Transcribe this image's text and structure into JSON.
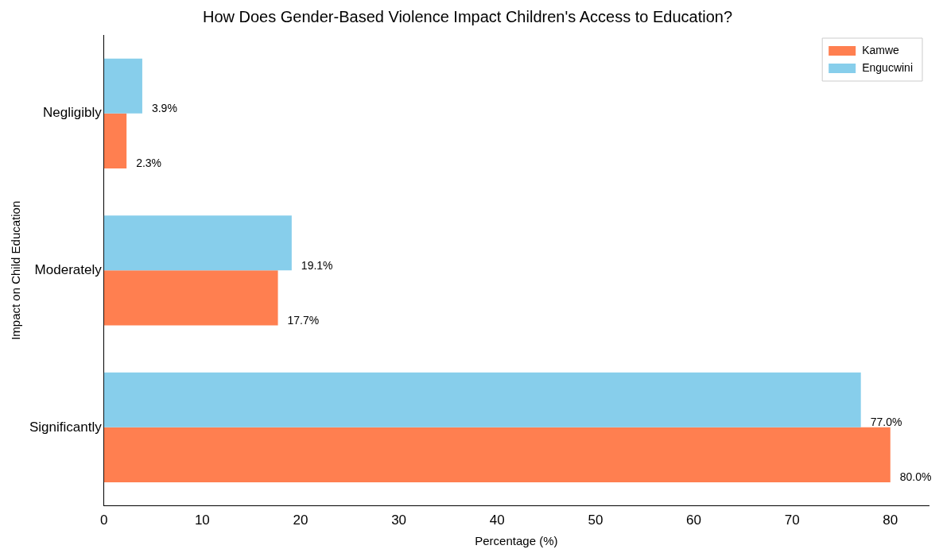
{
  "chart_data": {
    "type": "bar",
    "orientation": "horizontal",
    "title": "How Does Gender-Based Violence Impact Children's Access to Education?",
    "xlabel": "Percentage (%)",
    "ylabel": "Impact on Child Education",
    "categories": [
      "Negligibly",
      "Moderately",
      "Significantly"
    ],
    "series": [
      {
        "name": "Kamwe",
        "color": "#ff7f50",
        "values": [
          2.3,
          17.7,
          80.0
        ],
        "value_labels": [
          "2.3%",
          "17.7%",
          "80.0%"
        ]
      },
      {
        "name": "Engucwini",
        "color": "#87ceeb",
        "values": [
          3.9,
          19.1,
          77.0
        ],
        "value_labels": [
          "3.9%",
          "19.1%",
          "77.0%"
        ]
      }
    ],
    "xlim": [
      0,
      83.9
    ],
    "xticks": [
      0,
      10,
      20,
      30,
      40,
      50,
      60,
      70,
      80
    ],
    "grid": false,
    "legend": "top right"
  }
}
